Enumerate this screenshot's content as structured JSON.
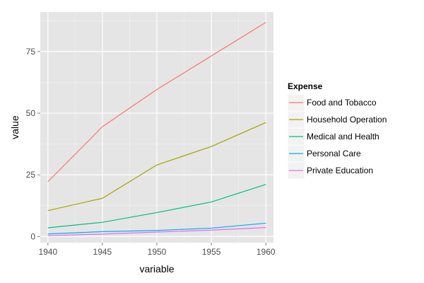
{
  "chart_data": {
    "type": "line",
    "title": "",
    "xlabel": "variable",
    "ylabel": "value",
    "x": [
      1940,
      1945,
      1950,
      1955,
      1960
    ],
    "x_tick_labels": [
      "1940",
      "1945",
      "1950",
      "1955",
      "1960"
    ],
    "y_ticks": [
      0,
      25,
      50,
      75
    ],
    "y_tick_labels": [
      "0",
      "25",
      "50",
      "75"
    ],
    "xlim": [
      1939.3,
      1960.7
    ],
    "ylim": [
      -2.5,
      91.0
    ],
    "grid": true,
    "legend": {
      "title": "Expense",
      "position": "right"
    },
    "series": [
      {
        "name": "Food and Tobacco",
        "color": "#F8766D",
        "values": [
          22.2,
          44.5,
          59.6,
          73.2,
          86.8
        ]
      },
      {
        "name": "Household Operation",
        "color": "#A3A500",
        "values": [
          10.5,
          15.5,
          29.0,
          36.5,
          46.2
        ]
      },
      {
        "name": "Medical and Health",
        "color": "#00BF7D",
        "values": [
          3.53,
          5.76,
          9.71,
          14.0,
          21.1
        ]
      },
      {
        "name": "Personal Care",
        "color": "#00B0F6",
        "values": [
          1.04,
          1.98,
          2.45,
          3.4,
          5.4
        ]
      },
      {
        "name": "Private Education",
        "color": "#E76BF3",
        "values": [
          0.341,
          0.974,
          1.8,
          2.6,
          3.64
        ]
      }
    ]
  }
}
